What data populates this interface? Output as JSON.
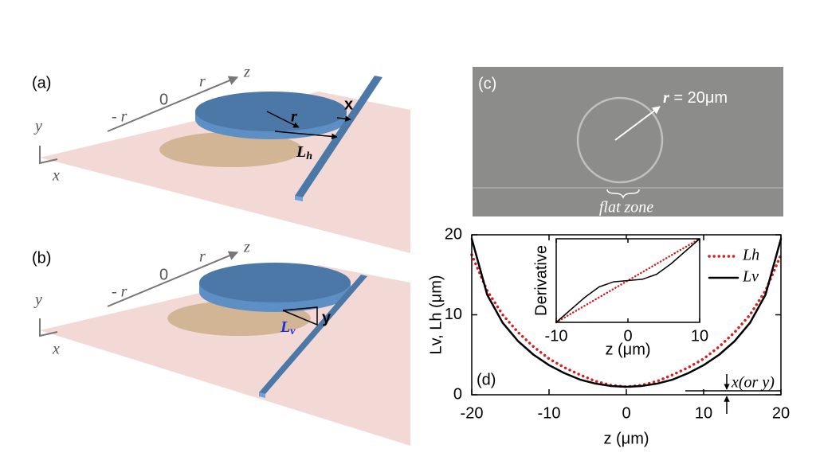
{
  "panel_a": {
    "label": "(a)",
    "axis": {
      "neg_r": "- r",
      "zero": "0",
      "r": "r",
      "z": "z",
      "y": "y",
      "x": "x"
    },
    "radius": "r",
    "gap": "x",
    "distance": {
      "main": "L",
      "sub": "h"
    }
  },
  "panel_b": {
    "label": "(b)",
    "axis": {
      "neg_r": "- r",
      "zero": "0",
      "r": "r",
      "z": "z",
      "y": "y",
      "x": "x"
    },
    "gap": "y",
    "distance": {
      "main": "L",
      "sub": "v"
    }
  },
  "panel_c": {
    "label": "(c)",
    "radius": {
      "symbol": "r",
      "text": " = 20μm"
    },
    "zone": "flat zone"
  },
  "chart_data": [
    {
      "type": "line",
      "label": "(d)",
      "xlabel": "z (μm)",
      "ylabel": "Lv, Lh (μm)",
      "annotation": "x(or y)",
      "x": [
        -20,
        -18,
        -16,
        -14,
        -12,
        -10,
        -8,
        -6,
        -4,
        -2,
        0,
        2,
        4,
        6,
        8,
        10,
        12,
        14,
        16,
        18,
        20
      ],
      "series": [
        {
          "name": "Lh",
          "color": "#d62020",
          "style": "dotted",
          "values": [
            17.5,
            13,
            10,
            7.8,
            6,
            4.5,
            3.4,
            2.5,
            1.7,
            1.2,
            1,
            1.2,
            1.7,
            2.5,
            3.4,
            4.5,
            6,
            7.8,
            10,
            13,
            17.5
          ]
        },
        {
          "name": "Lv",
          "color": "#000000",
          "style": "solid",
          "values": [
            19.5,
            12.5,
            9,
            6.7,
            5,
            3.7,
            2.7,
            1.9,
            1.4,
            1.1,
            1,
            1.1,
            1.4,
            1.9,
            2.7,
            3.7,
            5,
            6.7,
            9,
            12.5,
            19.5
          ]
        }
      ],
      "xlim": [
        -20,
        20
      ],
      "ylim": [
        0,
        20
      ],
      "xticks": [
        -20,
        -10,
        0,
        10,
        20
      ],
      "yticks": [
        0,
        10,
        20
      ]
    },
    {
      "type": "line",
      "xlabel": "z (μm)",
      "ylabel": "Derivative",
      "x": [
        -10,
        -8,
        -6,
        -4,
        -2,
        0,
        2,
        4,
        6,
        8,
        10
      ],
      "series": [
        {
          "color": "#d62020",
          "style": "dotted",
          "values": [
            -1,
            -0.8,
            -0.6,
            -0.4,
            -0.2,
            0,
            0.2,
            0.4,
            0.6,
            0.8,
            1
          ]
        },
        {
          "color": "#000000",
          "style": "solid",
          "values": [
            -1,
            -0.7,
            -0.4,
            -0.15,
            -0.03,
            0,
            0.03,
            0.15,
            0.4,
            0.7,
            1
          ]
        }
      ],
      "xlim": [
        -10,
        10
      ],
      "ylim": [
        -1,
        1
      ],
      "xticks": [
        -10,
        0,
        10
      ]
    }
  ]
}
